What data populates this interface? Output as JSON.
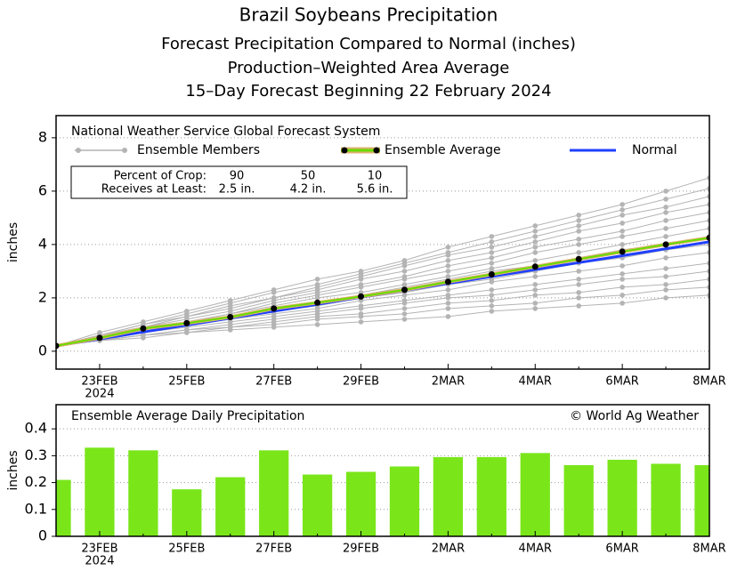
{
  "title": "Brazil Soybeans Precipitation",
  "subtitles": [
    "Forecast Precipitation Compared to Normal (inches)",
    "Production–Weighted Area Average",
    "15–Day Forecast Beginning 22 February 2024"
  ],
  "chart_data": [
    {
      "type": "line",
      "annotation": "National Weather Service Global Forecast System",
      "ylabel": "inches",
      "categories": [
        null,
        "23FEB",
        null,
        "25FEB",
        null,
        "27FEB",
        null,
        "29FEB",
        null,
        "2MAR",
        null,
        "4MAR",
        null,
        "6MAR",
        null,
        "8MAR"
      ],
      "x_sublabel": "2024",
      "ylim": [
        -0.67,
        8.83
      ],
      "yticks": [
        0,
        2,
        4,
        6,
        8
      ],
      "grid": true,
      "crop_table": {
        "rows": [
          [
            "Percent of Crop:",
            "90",
            "50",
            "10"
          ],
          [
            "Receives at Least:",
            "2.5 in.",
            "4.2 in.",
            "5.6 in."
          ]
        ]
      },
      "series": [
        {
          "name": "Ensemble Members",
          "color": "#b4b4b4",
          "values": [
            [
              0.2,
              0.7,
              1.1,
              1.5,
              1.9,
              2.3,
              2.7,
              3.0,
              3.4,
              3.9,
              4.3,
              4.7,
              5.1,
              5.5,
              6.0,
              6.5
            ],
            [
              0.2,
              0.6,
              1.0,
              1.4,
              1.8,
              2.2,
              2.5,
              2.9,
              3.3,
              3.7,
              4.1,
              4.5,
              4.9,
              5.3,
              5.7,
              6.1
            ],
            [
              0.2,
              0.6,
              1.0,
              1.3,
              1.7,
              2.0,
              2.4,
              2.8,
              3.2,
              3.6,
              3.9,
              4.3,
              4.7,
              5.1,
              5.4,
              5.8
            ],
            [
              0.2,
              0.6,
              0.9,
              1.3,
              1.6,
              2.0,
              2.3,
              2.7,
              3.0,
              3.4,
              3.7,
              4.1,
              4.5,
              4.8,
              5.2,
              5.5
            ],
            [
              0.2,
              0.6,
              0.9,
              1.2,
              1.5,
              1.9,
              2.2,
              2.5,
              2.8,
              3.2,
              3.5,
              3.9,
              4.2,
              4.5,
              4.9,
              5.2
            ],
            [
              0.2,
              0.5,
              0.9,
              1.1,
              1.4,
              1.8,
              2.1,
              2.4,
              2.7,
              3.0,
              3.3,
              3.7,
              4.0,
              4.3,
              4.6,
              4.9
            ],
            [
              0.2,
              0.5,
              0.8,
              1.1,
              1.4,
              1.7,
              2.0,
              2.2,
              2.5,
              2.8,
              3.1,
              3.4,
              3.7,
              4.0,
              4.3,
              4.6
            ],
            [
              0.2,
              0.5,
              0.8,
              1.0,
              1.3,
              1.6,
              1.8,
              2.1,
              2.4,
              2.7,
              3.0,
              3.2,
              3.5,
              3.8,
              4.0,
              4.3
            ],
            [
              0.2,
              0.5,
              0.8,
              1.0,
              1.2,
              1.5,
              1.7,
              2.0,
              2.2,
              2.5,
              2.7,
              3.0,
              3.3,
              3.5,
              3.8,
              4.0
            ],
            [
              0.2,
              0.5,
              0.7,
              1.0,
              1.2,
              1.4,
              1.6,
              1.9,
              2.1,
              2.3,
              2.6,
              2.8,
              3.0,
              3.2,
              3.5,
              3.7
            ],
            [
              0.2,
              0.4,
              0.7,
              0.9,
              1.1,
              1.3,
              1.5,
              1.7,
              1.9,
              2.1,
              2.3,
              2.5,
              2.7,
              2.9,
              3.1,
              3.3
            ],
            [
              0.2,
              0.4,
              0.6,
              0.8,
              1.0,
              1.2,
              1.4,
              1.6,
              1.8,
              2.0,
              2.1,
              2.3,
              2.5,
              2.7,
              2.8,
              3.0
            ],
            [
              0.2,
              0.4,
              0.6,
              0.8,
              0.9,
              1.1,
              1.3,
              1.4,
              1.6,
              1.8,
              1.9,
              2.1,
              2.2,
              2.4,
              2.5,
              2.7
            ],
            [
              0.2,
              0.4,
              0.6,
              0.7,
              0.9,
              1.0,
              1.2,
              1.3,
              1.4,
              1.6,
              1.7,
              1.8,
              2.0,
              2.1,
              2.3,
              2.4
            ],
            [
              0.2,
              0.4,
              0.5,
              0.7,
              0.8,
              0.9,
              1.0,
              1.1,
              1.2,
              1.3,
              1.5,
              1.6,
              1.7,
              1.8,
              2.0,
              2.1
            ]
          ]
        },
        {
          "name": "Ensemble Average",
          "color": "#66dd00",
          "outline_color": "#e0b070",
          "marker_color": "#000000",
          "values": [
            0.2,
            0.5,
            0.85,
            1.05,
            1.28,
            1.6,
            1.82,
            2.05,
            2.3,
            2.6,
            2.88,
            3.17,
            3.45,
            3.73,
            4.0,
            4.25
          ]
        },
        {
          "name": "Normal",
          "color": "#2040ff",
          "values": [
            0.2,
            0.46,
            0.72,
            0.98,
            1.24,
            1.5,
            1.76,
            2.02,
            2.28,
            2.54,
            2.8,
            3.06,
            3.32,
            3.58,
            3.84,
            4.1
          ]
        }
      ]
    },
    {
      "type": "bar",
      "title": "Ensemble Average Daily Precipitation",
      "annotation": "© World Ag Weather",
      "ylabel": "inches",
      "categories": [
        null,
        "23FEB",
        null,
        "25FEB",
        null,
        "27FEB",
        null,
        "29FEB",
        null,
        "2MAR",
        null,
        "4MAR",
        null,
        "6MAR",
        null,
        "8MAR"
      ],
      "x_sublabel": "2024",
      "ylim": [
        0,
        0.49
      ],
      "yticks": [
        0,
        0.1,
        0.2,
        0.3,
        0.4
      ],
      "grid": true,
      "color": "#7ae61a",
      "values": [
        0.21,
        0.33,
        0.32,
        0.175,
        0.22,
        0.32,
        0.23,
        0.24,
        0.26,
        0.295,
        0.295,
        0.31,
        0.265,
        0.285,
        0.27,
        0.265
      ]
    }
  ]
}
